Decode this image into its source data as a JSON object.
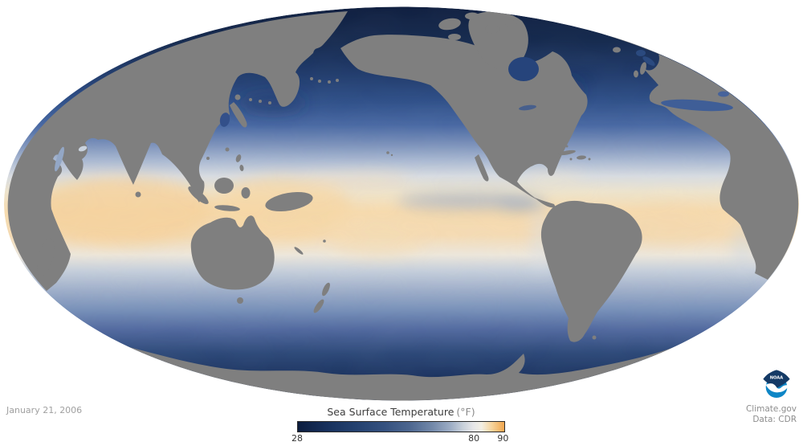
{
  "map": {
    "date_label": "January 21, 2006",
    "land_color": "#7f7f7f",
    "background_color": "#ffffff",
    "ocean_cold_color": "#13264c",
    "ocean_warm_color": "#f7dcae"
  },
  "legend": {
    "title": "Sea Surface Temperature",
    "units": "(°F)",
    "range_min": 28,
    "range_max": 90,
    "ticks": [
      {
        "label": "28",
        "pos": "0%"
      },
      {
        "label": "80",
        "pos": "85%"
      },
      {
        "label": "90",
        "pos": "99%"
      }
    ],
    "gradient": [
      "#0c1d3e 0%",
      "#17305c 14%",
      "#24416f 28%",
      "#35517f 42%",
      "#4c668f 54%",
      "#7288a9 65%",
      "#9dadc5 74%",
      "#c8d0da 80%",
      "#e6e6e8 85%",
      "#f3efe4 89%",
      "#f6d49c 94%",
      "#f1a64d 100%"
    ]
  },
  "credits": {
    "site": "Climate.gov",
    "data_source": "Data: CDR",
    "noaa_logo_text": "NOAA"
  }
}
